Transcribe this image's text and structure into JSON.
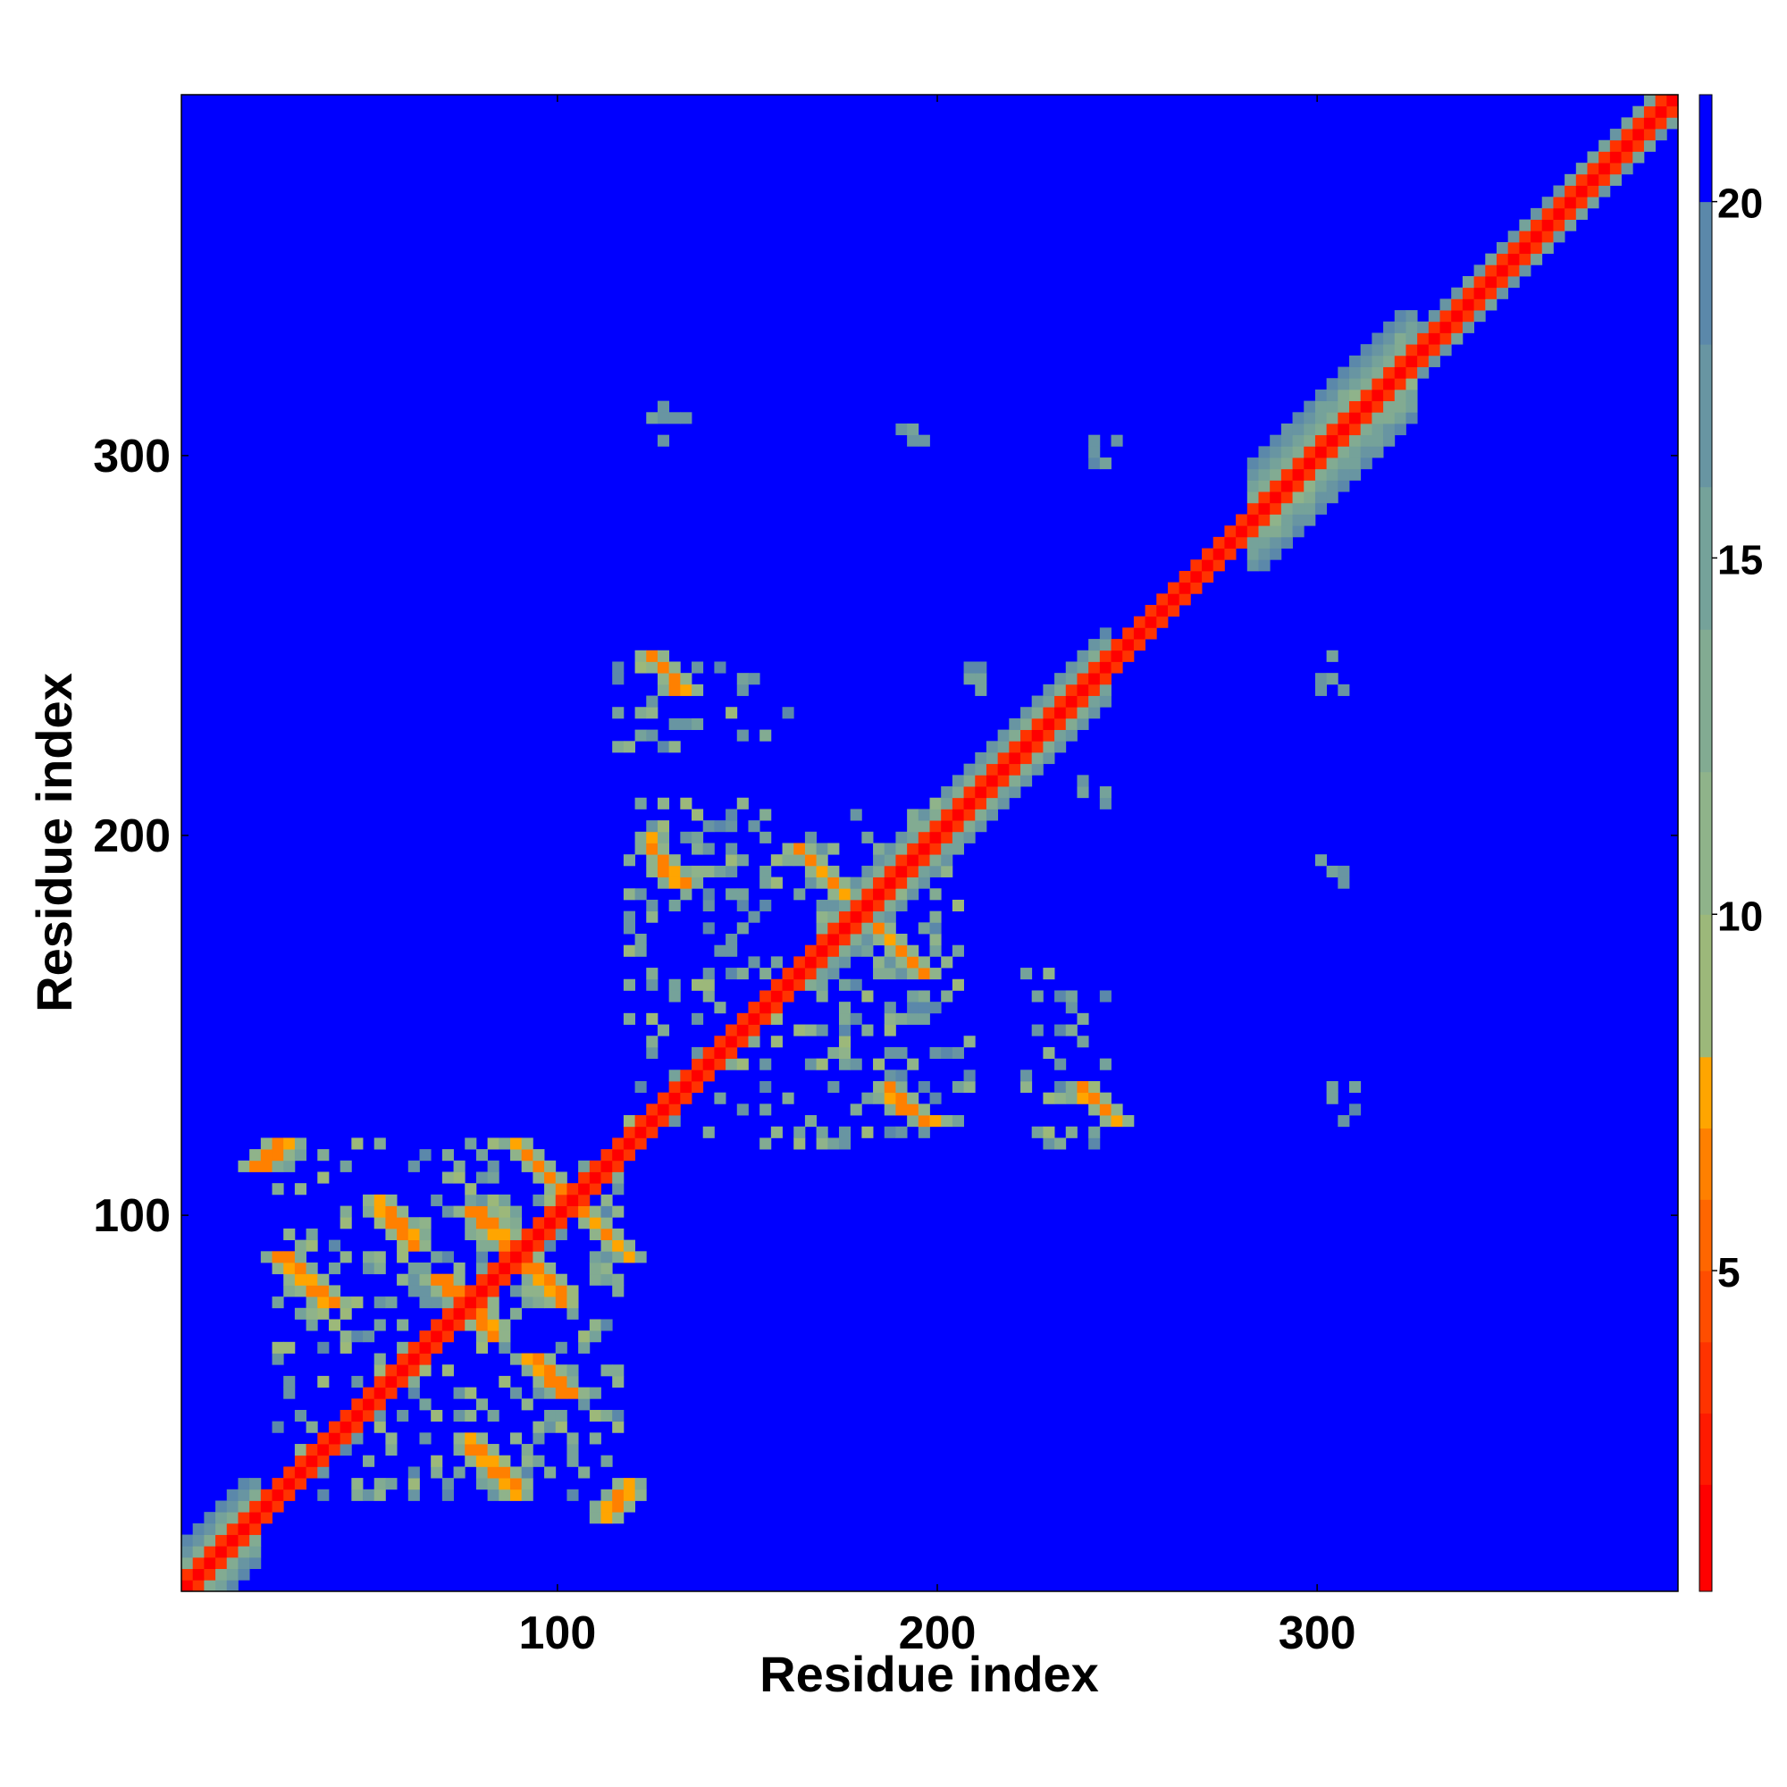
{
  "chart_data": {
    "type": "heatmap",
    "xlabel": "Residue index",
    "ylabel": "Residue index",
    "xlim": [
      1,
      395
    ],
    "ylim": [
      1,
      395
    ],
    "x_ticks": [
      100,
      200,
      300
    ],
    "y_ticks": [
      100,
      200,
      300
    ],
    "colorbar": {
      "ticks": [
        5,
        10,
        15,
        20
      ],
      "range": [
        0.5,
        21.5
      ],
      "levels": [
        {
          "max": 2,
          "color": "#ff0000"
        },
        {
          "max": 3,
          "color": "#ff1a00"
        },
        {
          "max": 4,
          "color": "#ff3300"
        },
        {
          "max": 5,
          "color": "#ff4d00"
        },
        {
          "max": 6,
          "color": "#ff6600"
        },
        {
          "max": 7,
          "color": "#ff8000"
        },
        {
          "max": 8,
          "color": "#ffa500"
        },
        {
          "max": 10,
          "color": "#9cb87a"
        },
        {
          "max": 12,
          "color": "#8fb38a"
        },
        {
          "max": 14,
          "color": "#82ab92"
        },
        {
          "max": 16,
          "color": "#75a29a"
        },
        {
          "max": 18,
          "color": "#6895a2"
        },
        {
          "max": 20,
          "color": "#5b88aa"
        },
        {
          "max": 21.5,
          "color": "#0000ff"
        }
      ]
    },
    "background_value": 21,
    "diagonal": {
      "from": 1,
      "to": 395,
      "width": 3
    },
    "diagonal_halos": [
      {
        "from": 1,
        "to": 20,
        "width": 10
      },
      {
        "from": 170,
        "to": 245,
        "width": 9
      },
      {
        "from": 285,
        "to": 325,
        "width": 14
      },
      {
        "from": 325,
        "to": 395,
        "width": 6
      }
    ],
    "contact_regions": [
      {
        "x": [
          25,
          115
        ],
        "y": [
          25,
          120
        ],
        "density": 0.55
      },
      {
        "x": [
          120,
          210
        ],
        "y": [
          120,
          210
        ],
        "density": 0.5
      },
      {
        "x": [
          112,
          160
        ],
        "y": [
          225,
          245
        ],
        "density": 0.45
      },
      {
        "x": [
          225,
          245
        ],
        "y": [
          120,
          165
        ],
        "density": 0.45
      }
    ],
    "strands": [
      {
        "x": [
          20,
          28
        ],
        "y": [
          112,
          120
        ],
        "orientation": "parallel"
      },
      {
        "x": [
          112,
          120
        ],
        "y": [
          20,
          28
        ],
        "orientation": "parallel"
      },
      {
        "x": [
          27,
          40
        ],
        "y": [
          90,
          77
        ],
        "orientation": "antiparallel"
      },
      {
        "x": [
          77,
          90
        ],
        "y": [
          40,
          27
        ],
        "orientation": "antiparallel"
      },
      {
        "x": [
          52,
          62
        ],
        "y": [
          103,
          93
        ],
        "orientation": "antiparallel"
      },
      {
        "x": [
          93,
          103
        ],
        "y": [
          62,
          52
        ],
        "orientation": "antiparallel"
      },
      {
        "x": [
          78,
          88
        ],
        "y": [
          102,
          92
        ],
        "orientation": "antiparallel"
      },
      {
        "x": [
          92,
          102
        ],
        "y": [
          88,
          78
        ],
        "orientation": "antiparallel"
      },
      {
        "x": [
          90,
          118
        ],
        "y": [
          118,
          90
        ],
        "orientation": "antiparallel"
      },
      {
        "x": [
          68,
          82
        ],
        "y": [
          84,
          70
        ],
        "orientation": "antiparallel"
      },
      {
        "x": [
          70,
          84
        ],
        "y": [
          82,
          68
        ],
        "orientation": "antiparallel"
      },
      {
        "x": [
          124,
          133
        ],
        "y": [
          199,
          188
        ],
        "orientation": "antiparallel"
      },
      {
        "x": [
          188,
          199
        ],
        "y": [
          133,
          124
        ],
        "orientation": "antiparallel"
      },
      {
        "x": [
          163,
          176
        ],
        "y": [
          198,
          186
        ],
        "orientation": "antiparallel"
      },
      {
        "x": [
          186,
          198
        ],
        "y": [
          176,
          163
        ],
        "orientation": "antiparallel"
      },
      {
        "x": [
          126,
          134
        ],
        "y": [
          248,
          238
        ],
        "orientation": "antiparallel"
      },
      {
        "x": [
          238,
          248
        ],
        "y": [
          134,
          126
        ],
        "orientation": "antiparallel"
      }
    ],
    "scattered_clusters": [
      {
        "x": 130,
        "y": 310
      },
      {
        "x": 193,
        "y": 307
      },
      {
        "x": 246,
        "y": 304
      },
      {
        "x": 305,
        "y": 244
      },
      {
        "x": 307,
        "y": 192
      },
      {
        "x": 310,
        "y": 130
      },
      {
        "x": 210,
        "y": 243
      },
      {
        "x": 243,
        "y": 210
      }
    ]
  }
}
